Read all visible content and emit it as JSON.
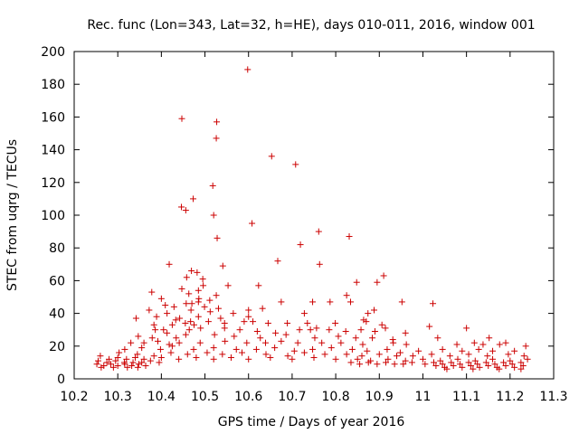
{
  "chart_data": {
    "type": "scatter",
    "title": "Rec. func (Lon=343, Lat=32, h=HE), days 010-011, 2016, window 001",
    "xlabel": "GPS time / Days of year 2016",
    "ylabel": "STEC from uqrg / TECUs",
    "xlim": [
      10.2,
      11.3
    ],
    "ylim": [
      0,
      200
    ],
    "x_ticks": [
      10.2,
      10.3,
      10.4,
      10.5,
      10.6,
      10.7,
      10.8,
      10.9,
      11,
      11.1,
      11.2,
      11.3
    ],
    "x_tick_labels": [
      "10.2",
      "10.3",
      "10.4",
      "10.5",
      "10.6",
      "10.7",
      "10.8",
      "10.9",
      "11",
      "11.1",
      "11.2",
      "11.3"
    ],
    "y_ticks": [
      0,
      20,
      40,
      60,
      80,
      100,
      120,
      140,
      160,
      180,
      200
    ],
    "y_tick_labels": [
      "0",
      "20",
      "40",
      "60",
      "80",
      "100",
      "120",
      "140",
      "160",
      "180",
      "200"
    ],
    "marker": "+",
    "color": "#cc0000",
    "grid": false,
    "points": [
      [
        10.598,
        189
      ],
      [
        10.447,
        159
      ],
      [
        10.527,
        157
      ],
      [
        10.526,
        147
      ],
      [
        10.653,
        136
      ],
      [
        10.708,
        131
      ],
      [
        10.518,
        118
      ],
      [
        10.473,
        110
      ],
      [
        10.446,
        105
      ],
      [
        10.456,
        103
      ],
      [
        10.52,
        100
      ],
      [
        10.608,
        95
      ],
      [
        10.761,
        90
      ],
      [
        10.831,
        87
      ],
      [
        10.528,
        86
      ],
      [
        10.719,
        82
      ],
      [
        10.667,
        72
      ],
      [
        10.418,
        70
      ],
      [
        10.763,
        70
      ],
      [
        10.541,
        69
      ],
      [
        10.469,
        66
      ],
      [
        10.482,
        65
      ],
      [
        10.458,
        62
      ],
      [
        10.495,
        61
      ],
      [
        10.91,
        63
      ],
      [
        10.496,
        57
      ],
      [
        10.553,
        57
      ],
      [
        10.623,
        57
      ],
      [
        10.848,
        59
      ],
      [
        10.895,
        59
      ],
      [
        10.447,
        55
      ],
      [
        10.485,
        54
      ],
      [
        10.463,
        52
      ],
      [
        10.378,
        53
      ],
      [
        10.526,
        51
      ],
      [
        10.825,
        51
      ],
      [
        10.4,
        49
      ],
      [
        10.486,
        49
      ],
      [
        10.485,
        47
      ],
      [
        10.511,
        48
      ],
      [
        10.675,
        47
      ],
      [
        10.747,
        47
      ],
      [
        10.787,
        47
      ],
      [
        10.834,
        47
      ],
      [
        10.952,
        47
      ],
      [
        11.023,
        46
      ],
      [
        10.457,
        46
      ],
      [
        10.47,
        46
      ],
      [
        10.409,
        45
      ],
      [
        10.429,
        44
      ],
      [
        10.468,
        42
      ],
      [
        10.499,
        44
      ],
      [
        10.531,
        43
      ],
      [
        10.632,
        43
      ],
      [
        10.888,
        42
      ],
      [
        10.372,
        42
      ],
      [
        10.512,
        41
      ],
      [
        10.6,
        42
      ],
      [
        10.565,
        40
      ],
      [
        10.728,
        40
      ],
      [
        10.874,
        40
      ],
      [
        10.342,
        37
      ],
      [
        10.389,
        38
      ],
      [
        10.413,
        40
      ],
      [
        10.442,
        37
      ],
      [
        10.485,
        38
      ],
      [
        10.536,
        37
      ],
      [
        10.6,
        38
      ],
      [
        10.864,
        36
      ],
      [
        10.433,
        36
      ],
      [
        10.383,
        33
      ],
      [
        10.425,
        33
      ],
      [
        10.455,
        34
      ],
      [
        10.467,
        35
      ],
      [
        10.475,
        33
      ],
      [
        10.508,
        35
      ],
      [
        10.545,
        34
      ],
      [
        10.59,
        35
      ],
      [
        10.61,
        35
      ],
      [
        10.645,
        34
      ],
      [
        10.689,
        34
      ],
      [
        10.735,
        34
      ],
      [
        10.799,
        34
      ],
      [
        10.87,
        35
      ],
      [
        10.906,
        33
      ],
      [
        10.386,
        30
      ],
      [
        10.405,
        30
      ],
      [
        10.464,
        30
      ],
      [
        10.49,
        31
      ],
      [
        10.545,
        31
      ],
      [
        10.58,
        30
      ],
      [
        10.62,
        29
      ],
      [
        10.662,
        28
      ],
      [
        10.717,
        30
      ],
      [
        10.742,
        30
      ],
      [
        10.756,
        31
      ],
      [
        10.785,
        30
      ],
      [
        10.823,
        29
      ],
      [
        10.858,
        30
      ],
      [
        10.89,
        29
      ],
      [
        10.914,
        31
      ],
      [
        10.96,
        28
      ],
      [
        11.015,
        32
      ],
      [
        11.1,
        31
      ],
      [
        10.347,
        26
      ],
      [
        10.379,
        25
      ],
      [
        10.413,
        28
      ],
      [
        10.434,
        25
      ],
      [
        10.456,
        27
      ],
      [
        10.522,
        27
      ],
      [
        10.567,
        26
      ],
      [
        10.627,
        25
      ],
      [
        10.686,
        27
      ],
      [
        10.752,
        25
      ],
      [
        10.806,
        26
      ],
      [
        10.846,
        25
      ],
      [
        10.884,
        25
      ],
      [
        10.931,
        24
      ],
      [
        11.034,
        25
      ],
      [
        11.152,
        25
      ],
      [
        11.19,
        22
      ],
      [
        10.33,
        22
      ],
      [
        10.36,
        22
      ],
      [
        10.392,
        23
      ],
      [
        10.418,
        21
      ],
      [
        10.441,
        22
      ],
      [
        10.489,
        22
      ],
      [
        10.546,
        23
      ],
      [
        10.596,
        22
      ],
      [
        10.639,
        22
      ],
      [
        10.675,
        23
      ],
      [
        10.713,
        22
      ],
      [
        10.768,
        22
      ],
      [
        10.812,
        22
      ],
      [
        10.862,
        21
      ],
      [
        10.932,
        22
      ],
      [
        10.962,
        21
      ],
      [
        11.078,
        21
      ],
      [
        11.118,
        22
      ],
      [
        11.138,
        21
      ],
      [
        11.176,
        21
      ],
      [
        11.236,
        20
      ],
      [
        10.316,
        18
      ],
      [
        10.355,
        19
      ],
      [
        10.398,
        18
      ],
      [
        10.425,
        20
      ],
      [
        10.474,
        18
      ],
      [
        10.52,
        19
      ],
      [
        10.572,
        18
      ],
      [
        10.618,
        18
      ],
      [
        10.66,
        19
      ],
      [
        10.705,
        17
      ],
      [
        10.747,
        18
      ],
      [
        10.79,
        19
      ],
      [
        10.838,
        18
      ],
      [
        10.872,
        17
      ],
      [
        10.918,
        18
      ],
      [
        10.948,
        16
      ],
      [
        10.99,
        17
      ],
      [
        11.045,
        18
      ],
      [
        11.09,
        17
      ],
      [
        11.128,
        18
      ],
      [
        11.16,
        17
      ],
      [
        11.21,
        17
      ],
      [
        10.303,
        16
      ],
      [
        10.345,
        15
      ],
      [
        10.383,
        14
      ],
      [
        10.422,
        16
      ],
      [
        10.46,
        15
      ],
      [
        10.505,
        16
      ],
      [
        10.54,
        15
      ],
      [
        10.585,
        16
      ],
      [
        10.64,
        15
      ],
      [
        10.69,
        14
      ],
      [
        10.728,
        16
      ],
      [
        10.775,
        15
      ],
      [
        10.825,
        15
      ],
      [
        10.86,
        14
      ],
      [
        10.9,
        15
      ],
      [
        10.94,
        14
      ],
      [
        10.977,
        14
      ],
      [
        11.02,
        15
      ],
      [
        11.062,
        14
      ],
      [
        11.105,
        15
      ],
      [
        11.148,
        14
      ],
      [
        11.196,
        15
      ],
      [
        11.232,
        14
      ],
      [
        10.26,
        14
      ],
      [
        10.28,
        12
      ],
      [
        10.3,
        13
      ],
      [
        10.32,
        12
      ],
      [
        10.34,
        13
      ],
      [
        10.36,
        12
      ],
      [
        10.4,
        13
      ],
      [
        10.44,
        12
      ],
      [
        10.48,
        13
      ],
      [
        10.52,
        12
      ],
      [
        10.56,
        13
      ],
      [
        10.6,
        12
      ],
      [
        10.65,
        13
      ],
      [
        10.7,
        12
      ],
      [
        10.75,
        13
      ],
      [
        10.8,
        12
      ],
      [
        10.85,
        12
      ],
      [
        10.88,
        11
      ],
      [
        10.92,
        12
      ],
      [
        10.96,
        11
      ],
      [
        11.0,
        12
      ],
      [
        11.04,
        11
      ],
      [
        11.08,
        12
      ],
      [
        11.12,
        11
      ],
      [
        11.16,
        12
      ],
      [
        11.2,
        11
      ],
      [
        11.24,
        12
      ],
      [
        10.255,
        11
      ],
      [
        10.275,
        10
      ],
      [
        10.295,
        11
      ],
      [
        10.315,
        10
      ],
      [
        10.335,
        10
      ],
      [
        10.355,
        10
      ],
      [
        10.375,
        11
      ],
      [
        10.395,
        10
      ],
      [
        10.835,
        10
      ],
      [
        10.855,
        9
      ],
      [
        10.875,
        10
      ],
      [
        10.895,
        9
      ],
      [
        10.915,
        10
      ],
      [
        10.935,
        9
      ],
      [
        10.955,
        9
      ],
      [
        10.975,
        10
      ],
      [
        11.005,
        9
      ],
      [
        11.025,
        10
      ],
      [
        11.045,
        9
      ],
      [
        11.065,
        10
      ],
      [
        11.085,
        9
      ],
      [
        11.105,
        10
      ],
      [
        11.125,
        9
      ],
      [
        11.145,
        10
      ],
      [
        11.165,
        9
      ],
      [
        11.185,
        10
      ],
      [
        11.205,
        9
      ],
      [
        11.225,
        10
      ],
      [
        10.252,
        9
      ],
      [
        10.268,
        8
      ],
      [
        10.284,
        9
      ],
      [
        10.3,
        8
      ],
      [
        10.316,
        9
      ],
      [
        10.332,
        8
      ],
      [
        10.348,
        9
      ],
      [
        10.364,
        8
      ],
      [
        11.03,
        8
      ],
      [
        11.05,
        7
      ],
      [
        11.07,
        8
      ],
      [
        11.09,
        7
      ],
      [
        11.11,
        8
      ],
      [
        11.13,
        7
      ],
      [
        11.15,
        8
      ],
      [
        11.17,
        7
      ],
      [
        11.19,
        8
      ],
      [
        11.21,
        7
      ],
      [
        11.23,
        8
      ],
      [
        10.262,
        7
      ],
      [
        10.29,
        7
      ],
      [
        10.322,
        7
      ],
      [
        10.346,
        7
      ],
      [
        11.055,
        6
      ],
      [
        11.115,
        6
      ],
      [
        11.175,
        6
      ],
      [
        11.225,
        6
      ]
    ]
  }
}
